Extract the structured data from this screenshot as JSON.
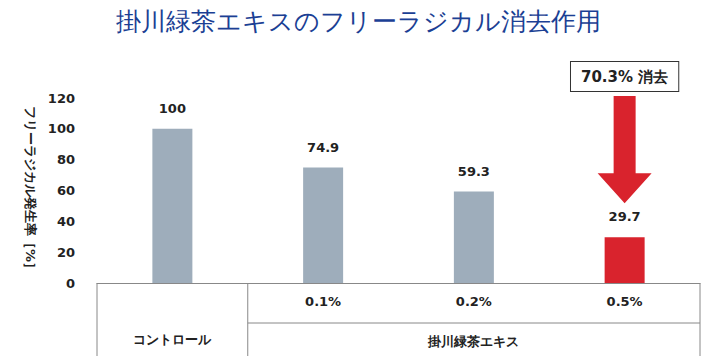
{
  "chart_data": {
    "type": "bar",
    "title": "掛川緑茶エキスのフリーラジカル消去作用",
    "y_label": "フリーラジカル発生率［%］",
    "categories": [
      "コントロール",
      "0.1%",
      "0.2%",
      "0.5%"
    ],
    "category_group": "掛川緑茶エキス",
    "values": [
      100,
      74.9,
      59.3,
      29.7
    ],
    "colors": [
      "#9eadbb",
      "#9eadbb",
      "#9eadbb",
      "#d9232d"
    ],
    "annotation": "70.3% 消去",
    "ylim": [
      0,
      120
    ],
    "yticks": [
      0,
      20,
      40,
      60,
      80,
      100,
      120
    ],
    "grid": false,
    "data_labels": true
  }
}
